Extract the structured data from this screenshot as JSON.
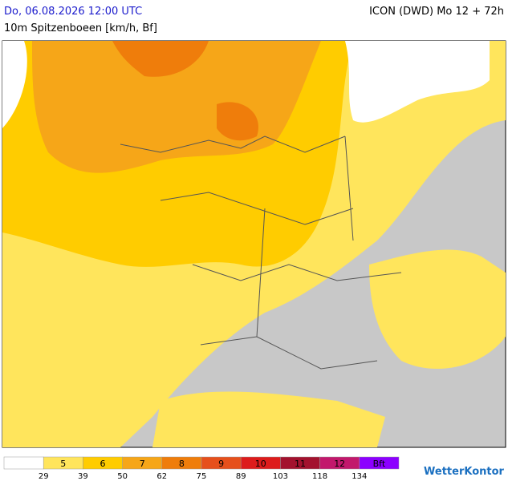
{
  "header": {
    "datetime": "Do, 06.08.2026 12:00 UTC",
    "model": "ICON (DWD) Mo 12 + 72h",
    "subtitle": "10m Spitzenboeen [km/h, Bf]"
  },
  "legend": {
    "classes": [
      null,
      "5",
      "6",
      "7",
      "8",
      "9",
      "10",
      "11",
      "12",
      "Bft"
    ],
    "colors": [
      "#ffffff",
      "#ffe55c",
      "#ffcc00",
      "#f6a618",
      "#ef7d0b",
      "#e6501c",
      "#dd1c1c",
      "#a3122e",
      "#c2186c",
      "#8c00ff"
    ],
    "thresholds": [
      29,
      39,
      50,
      62,
      75,
      89,
      103,
      118,
      134
    ]
  },
  "logo": "WetterKontor"
}
